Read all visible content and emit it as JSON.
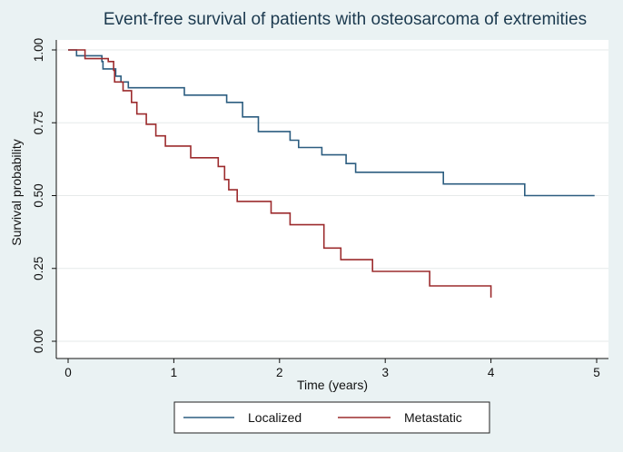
{
  "chart_data": {
    "type": "line",
    "subtype": "kaplan-meier step",
    "title": "Event-free survival of patients with osteosarcoma of extremities",
    "xlabel": "Time (years)",
    "ylabel": "Survival probability",
    "xlim": [
      0,
      5
    ],
    "ylim": [
      0,
      1
    ],
    "xticks": [
      0,
      1,
      2,
      3,
      4,
      5
    ],
    "xtick_labels": [
      "0",
      "1",
      "2",
      "3",
      "4",
      "5"
    ],
    "yticks": [
      0,
      0.25,
      0.5,
      0.75,
      1
    ],
    "ytick_labels": [
      "0.00",
      "0.25",
      "0.50",
      "0.75",
      "1.00"
    ],
    "grid": "horizontal",
    "legend_position": "bottom",
    "series": [
      {
        "name": "Localized",
        "color": "#2c5d80",
        "points": [
          [
            0,
            1.0
          ],
          [
            0.08,
            0.98
          ],
          [
            0.32,
            0.96
          ],
          [
            0.33,
            0.935
          ],
          [
            0.44,
            0.935
          ],
          [
            0.45,
            0.91
          ],
          [
            0.5,
            0.89
          ],
          [
            0.57,
            0.87
          ],
          [
            1.1,
            0.845
          ],
          [
            1.5,
            0.82
          ],
          [
            1.65,
            0.77
          ],
          [
            1.8,
            0.72
          ],
          [
            2.1,
            0.69
          ],
          [
            2.18,
            0.665
          ],
          [
            2.4,
            0.64
          ],
          [
            2.63,
            0.61
          ],
          [
            2.72,
            0.58
          ],
          [
            3.55,
            0.54
          ],
          [
            4.32,
            0.5
          ],
          [
            4.98,
            0.5
          ]
        ]
      },
      {
        "name": "Metastatic",
        "color": "#9c2b2d",
        "points": [
          [
            0,
            1.0
          ],
          [
            0.16,
            0.97
          ],
          [
            0.38,
            0.96
          ],
          [
            0.43,
            0.93
          ],
          [
            0.44,
            0.89
          ],
          [
            0.52,
            0.86
          ],
          [
            0.6,
            0.82
          ],
          [
            0.65,
            0.78
          ],
          [
            0.74,
            0.745
          ],
          [
            0.83,
            0.705
          ],
          [
            0.92,
            0.67
          ],
          [
            1.16,
            0.63
          ],
          [
            1.42,
            0.6
          ],
          [
            1.48,
            0.555
          ],
          [
            1.52,
            0.52
          ],
          [
            1.6,
            0.48
          ],
          [
            1.92,
            0.44
          ],
          [
            2.1,
            0.4
          ],
          [
            2.42,
            0.32
          ],
          [
            2.58,
            0.28
          ],
          [
            2.88,
            0.24
          ],
          [
            3.42,
            0.19
          ],
          [
            4.0,
            0.15
          ]
        ]
      }
    ]
  }
}
